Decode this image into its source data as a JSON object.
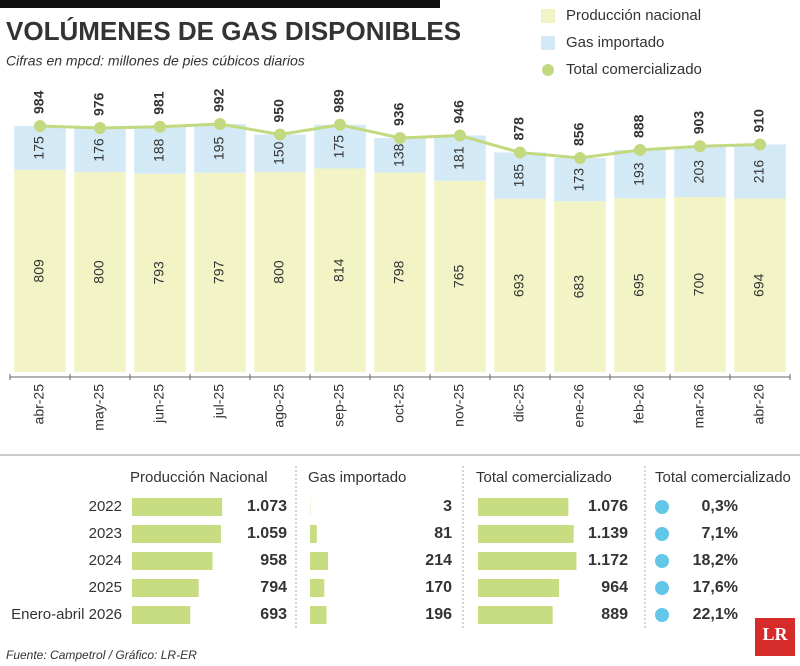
{
  "chart_data": {
    "type": "bar",
    "stacked": true,
    "title": "VOLÚMENES DE GAS DISPONIBLES",
    "subtitle": "Cifras en mpcd: millones de pies cúbicos diarios",
    "categories": [
      "abr-25",
      "may-25",
      "jun-25",
      "jul-25",
      "ago-25",
      "sep-25",
      "oct-25",
      "nov-25",
      "dic-25",
      "ene-26",
      "feb-26",
      "mar-26",
      "abr-26"
    ],
    "series": [
      {
        "name": "Producción nacional",
        "color": "#f3f4c6",
        "values": [
          809,
          800,
          793,
          797,
          800,
          814,
          798,
          765,
          693,
          683,
          695,
          700,
          694
        ]
      },
      {
        "name": "Gas importado",
        "color": "#d3eaf6",
        "values": [
          175,
          176,
          188,
          195,
          150,
          175,
          138,
          181,
          185,
          173,
          193,
          203,
          216
        ]
      },
      {
        "name": "Total comercializado",
        "type": "line",
        "color": "#c3d97f",
        "values": [
          984,
          976,
          981,
          992,
          950,
          989,
          936,
          946,
          878,
          856,
          888,
          903,
          910
        ]
      }
    ],
    "ylim": [
      0,
      1000
    ]
  },
  "table": {
    "rows": [
      "2022",
      "2023",
      "2024",
      "2025",
      "Enero-abril 2026"
    ],
    "series": [
      {
        "name": "Producción Nacional",
        "color": "#c8dc82",
        "values": [
          1073,
          1059,
          958,
          794,
          693
        ],
        "value_labels": [
          "1.073",
          "1.059",
          "958",
          "794",
          "693"
        ]
      },
      {
        "name": "Gas importado",
        "color": "#c8dc82",
        "values": [
          3,
          81,
          214,
          170,
          196
        ],
        "value_labels": [
          "3",
          "81",
          "214",
          "170",
          "196"
        ]
      },
      {
        "name": "Total comercializado",
        "color": "#c8dc82",
        "values": [
          1076,
          1139,
          1172,
          964,
          889
        ],
        "value_labels": [
          "1.076",
          "1.139",
          "1.172",
          "964",
          "889"
        ]
      },
      {
        "name": "Total comercializado",
        "color": "#62c6e6",
        "values": [
          0.3,
          7.1,
          18.2,
          17.6,
          22.1
        ],
        "value_labels": [
          "0,3%",
          "7,1%",
          "18,2%",
          "17,6%",
          "22,1%"
        ]
      }
    ]
  },
  "source": "Fuente: Campetrol / Gráfico: LR-ER",
  "logo": "LR"
}
